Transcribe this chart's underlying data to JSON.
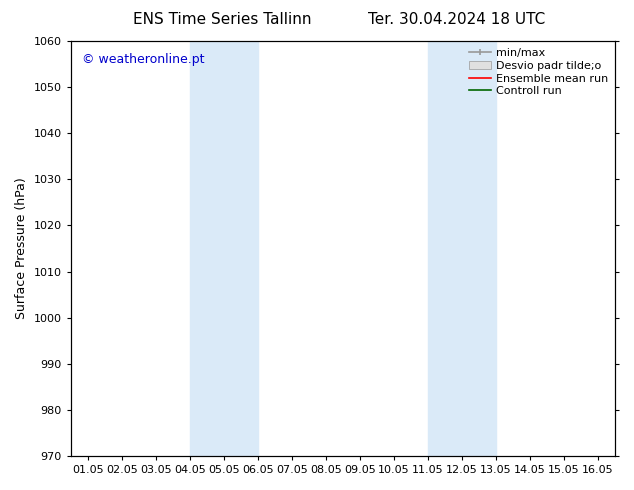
{
  "title_left": "ENS Time Series Tallinn",
  "title_right": "Ter. 30.04.2024 18 UTC",
  "ylabel": "Surface Pressure (hPa)",
  "watermark": "© weatheronline.pt",
  "watermark_color": "#0000cc",
  "ylim": [
    970,
    1060
  ],
  "yticks": [
    970,
    980,
    990,
    1000,
    1010,
    1020,
    1030,
    1040,
    1050,
    1060
  ],
  "xtick_labels": [
    "01.05",
    "02.05",
    "03.05",
    "04.05",
    "05.05",
    "06.05",
    "07.05",
    "08.05",
    "09.05",
    "10.05",
    "11.05",
    "12.05",
    "13.05",
    "14.05",
    "15.05",
    "16.05"
  ],
  "xtick_positions": [
    0,
    1,
    2,
    3,
    4,
    5,
    6,
    7,
    8,
    9,
    10,
    11,
    12,
    13,
    14,
    15
  ],
  "shaded_regions": [
    {
      "xmin": 3,
      "xmax": 5
    },
    {
      "xmin": 10,
      "xmax": 12
    }
  ],
  "shade_color": "#daeaf8",
  "background_color": "#ffffff",
  "legend_items": [
    {
      "label": "min/max",
      "color": "#999999"
    },
    {
      "label": "Desvio padr tilde;o",
      "color": "#cccccc"
    },
    {
      "label": "Ensemble mean run",
      "color": "#ff0000"
    },
    {
      "label": "Controll run",
      "color": "#006600"
    }
  ],
  "title_fontsize": 11,
  "axis_label_fontsize": 9,
  "tick_fontsize": 8,
  "legend_fontsize": 8,
  "watermark_fontsize": 9
}
